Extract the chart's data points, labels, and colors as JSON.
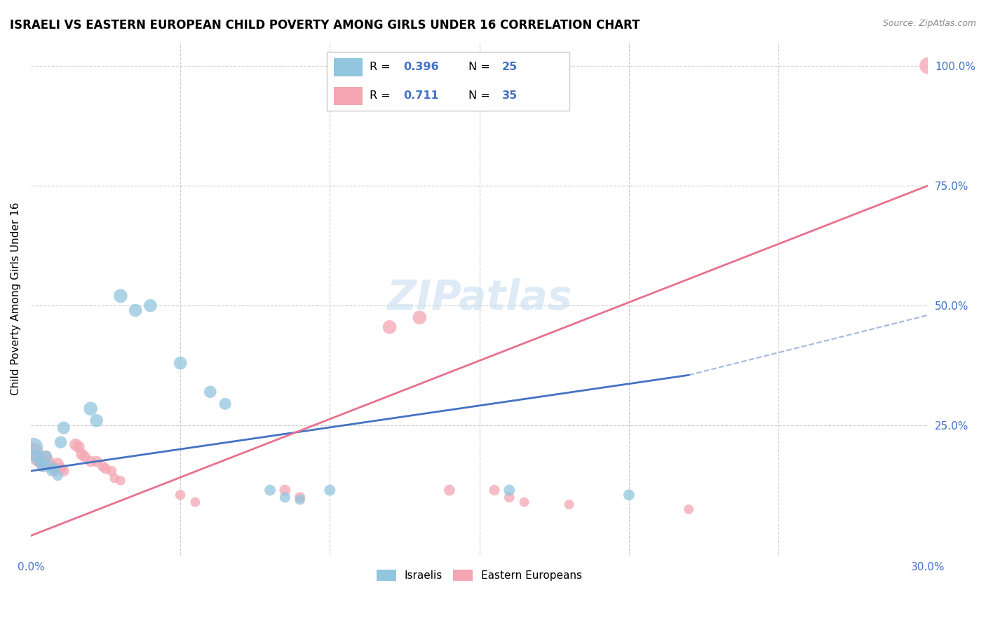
{
  "title": "ISRAELI VS EASTERN EUROPEAN CHILD POVERTY AMONG GIRLS UNDER 16 CORRELATION CHART",
  "source": "Source: ZipAtlas.com",
  "ylabel": "Child Poverty Among Girls Under 16",
  "xlim": [
    0.0,
    0.3
  ],
  "ylim": [
    -0.02,
    1.05
  ],
  "x_ticks": [
    0.0,
    0.05,
    0.1,
    0.15,
    0.2,
    0.25,
    0.3
  ],
  "x_tick_labels": [
    "0.0%",
    "",
    "",
    "",
    "",
    "",
    "30.0%"
  ],
  "y_ticks_right": [
    0.0,
    0.25,
    0.5,
    0.75,
    1.0
  ],
  "y_tick_labels_right": [
    "",
    "25.0%",
    "50.0%",
    "75.0%",
    "100.0%"
  ],
  "israeli_color": "#92c5de",
  "eastern_color": "#f4a6b2",
  "israeli_line_color": "#4472c4",
  "eastern_line_color": "#e8718d",
  "axis_label_color": "#4472c4",
  "grid_color": "#cccccc",
  "watermark": "ZIPatlas",
  "israeli_points": [
    [
      0.001,
      0.205
    ],
    [
      0.002,
      0.185
    ],
    [
      0.003,
      0.175
    ],
    [
      0.004,
      0.165
    ],
    [
      0.005,
      0.185
    ],
    [
      0.006,
      0.165
    ],
    [
      0.007,
      0.155
    ],
    [
      0.008,
      0.16
    ],
    [
      0.009,
      0.145
    ],
    [
      0.01,
      0.215
    ],
    [
      0.011,
      0.245
    ],
    [
      0.02,
      0.285
    ],
    [
      0.022,
      0.26
    ],
    [
      0.03,
      0.52
    ],
    [
      0.035,
      0.49
    ],
    [
      0.04,
      0.5
    ],
    [
      0.05,
      0.38
    ],
    [
      0.06,
      0.32
    ],
    [
      0.065,
      0.295
    ],
    [
      0.08,
      0.115
    ],
    [
      0.085,
      0.1
    ],
    [
      0.09,
      0.095
    ],
    [
      0.1,
      0.115
    ],
    [
      0.16,
      0.115
    ],
    [
      0.2,
      0.105
    ]
  ],
  "eastern_points": [
    [
      0.001,
      0.195
    ],
    [
      0.002,
      0.18
    ],
    [
      0.003,
      0.175
    ],
    [
      0.004,
      0.165
    ],
    [
      0.005,
      0.185
    ],
    [
      0.006,
      0.175
    ],
    [
      0.007,
      0.165
    ],
    [
      0.008,
      0.155
    ],
    [
      0.009,
      0.17
    ],
    [
      0.01,
      0.16
    ],
    [
      0.011,
      0.155
    ],
    [
      0.015,
      0.21
    ],
    [
      0.016,
      0.205
    ],
    [
      0.017,
      0.19
    ],
    [
      0.018,
      0.185
    ],
    [
      0.02,
      0.175
    ],
    [
      0.022,
      0.175
    ],
    [
      0.024,
      0.165
    ],
    [
      0.025,
      0.16
    ],
    [
      0.027,
      0.155
    ],
    [
      0.028,
      0.14
    ],
    [
      0.03,
      0.135
    ],
    [
      0.05,
      0.105
    ],
    [
      0.055,
      0.09
    ],
    [
      0.085,
      0.115
    ],
    [
      0.09,
      0.1
    ],
    [
      0.12,
      0.455
    ],
    [
      0.13,
      0.475
    ],
    [
      0.14,
      0.115
    ],
    [
      0.155,
      0.115
    ],
    [
      0.16,
      0.1
    ],
    [
      0.165,
      0.09
    ],
    [
      0.18,
      0.085
    ],
    [
      0.22,
      0.075
    ],
    [
      0.3,
      1.0
    ]
  ],
  "israeli_trend_x": [
    0.0,
    0.22
  ],
  "israeli_trend_y": [
    0.155,
    0.355
  ],
  "eastern_trend_x": [
    0.0,
    0.3
  ],
  "eastern_trend_y": [
    0.02,
    0.75
  ],
  "israeli_sizes": [
    350,
    200,
    160,
    140,
    160,
    140,
    120,
    120,
    110,
    160,
    170,
    200,
    180,
    200,
    180,
    180,
    180,
    160,
    150,
    130,
    120,
    110,
    130,
    130,
    130
  ],
  "eastern_sizes": [
    350,
    200,
    170,
    150,
    160,
    150,
    140,
    130,
    150,
    140,
    130,
    160,
    150,
    140,
    130,
    130,
    130,
    120,
    120,
    110,
    100,
    100,
    110,
    100,
    130,
    120,
    200,
    200,
    130,
    120,
    110,
    100,
    100,
    100,
    300
  ]
}
